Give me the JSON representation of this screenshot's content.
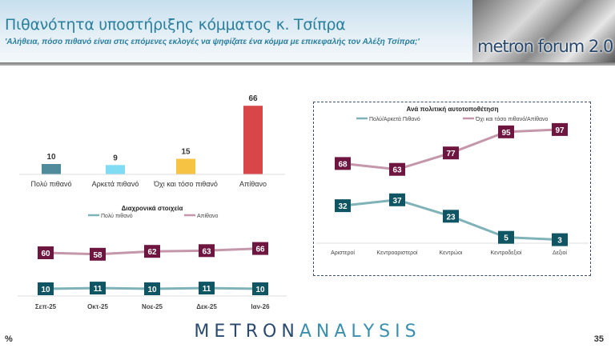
{
  "header": {
    "title": "Πιθανότητα υποστήριξης κόμματος κ. Τσίπρα",
    "subtitle": "'Αλήθεια, πόσο πιθανό είναι στις επόμενες εκλογές να ψηφίζατε ένα κόμμα με επικεφαλής τον Αλέξη Τσίπρα;'",
    "logo_text": "metron forum 2.0"
  },
  "footer": {
    "brand_a": "METRON",
    "brand_b": "ANALYSIS",
    "percent_sign": "%",
    "page_number": "35"
  },
  "chart_data": [
    {
      "type": "bar",
      "title": "",
      "categories": [
        "Πολύ πιθανό",
        "Αρκετά πιθανό",
        "Όχι και τόσο πιθανό",
        "Απίθανο"
      ],
      "values": [
        10,
        9,
        15,
        66
      ],
      "colors": [
        "#4f8b9b",
        "#7fdcf3",
        "#f6c343",
        "#d8464a"
      ]
    },
    {
      "type": "line",
      "title": "Διαχρονικά στοιχεία",
      "categories": [
        "Σεπ-25",
        "Οκτ-25",
        "Νοε-25",
        "Δεκ-25",
        "Ιαν-26"
      ],
      "legend": "top",
      "series": [
        {
          "name": "Πολύ πιθανό",
          "values": [
            10,
            11,
            10,
            11,
            10
          ],
          "color": "#0f5563",
          "line": "#7fb3b8"
        },
        {
          "name": "Απίθανο",
          "values": [
            60,
            58,
            62,
            63,
            66
          ],
          "color": "#6e1540",
          "line": "#c497ab"
        }
      ]
    },
    {
      "type": "line",
      "title": "Ανά πολιτική αυτοτοποθέτηση",
      "categories": [
        "Αριστεροί",
        "Κεντροαριστεροί",
        "Κεντρώοι",
        "Κεντροδεξιοί",
        "Δεξιοί"
      ],
      "legend": "top",
      "series": [
        {
          "name": "Πολύ/Αρκετά Πιθανό",
          "values": [
            32,
            37,
            23,
            5,
            3
          ],
          "color": "#0f5563",
          "line": "#7fb3b8"
        },
        {
          "name": "Όχι και τόσο πιθανό/Απίθανο",
          "values": [
            68,
            63,
            77,
            95,
            97
          ],
          "color": "#6e1540",
          "line": "#c497ab"
        }
      ]
    }
  ]
}
